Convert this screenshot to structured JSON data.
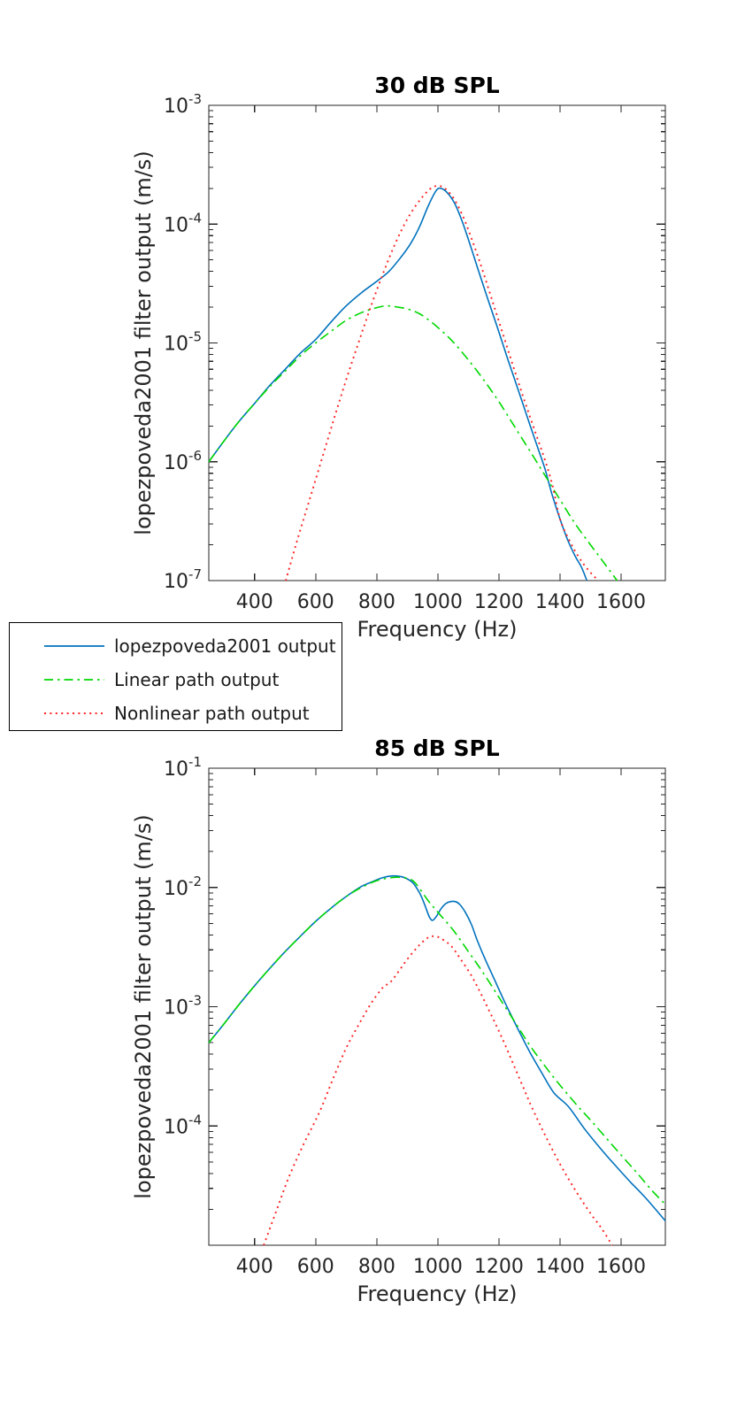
{
  "figure": {
    "background": "#ffffff",
    "axis_color": "#262626",
    "text_color": "#262626",
    "title_color": "#000000",
    "legend": {
      "items": [
        {
          "label": "lopezpoveda2001 output",
          "color": "#0072BD",
          "style": "solid"
        },
        {
          "label": "Linear path output",
          "color": "#00D800",
          "style": "dashdot"
        },
        {
          "label": "Nonlinear path output",
          "color": "#FF2222",
          "style": "dotted"
        }
      ]
    }
  },
  "chart_data": [
    {
      "type": "line",
      "title": "30 dB SPL",
      "xlabel": "Frequency (Hz)",
      "ylabel": "lopezpoveda2001 filter output (m/s)",
      "xlim": [
        250,
        1745
      ],
      "ylim": [
        1e-07,
        0.001
      ],
      "x_ticks": [
        400,
        600,
        800,
        1000,
        1200,
        1400,
        1600
      ],
      "y_tick_exponents": [
        -3,
        -4,
        -5,
        -6,
        -7
      ],
      "grid": false,
      "legend_position": "below-left",
      "series": [
        {
          "name": "lopezpoveda2001 output",
          "color": "#0072BD",
          "style": "solid",
          "points": [
            [
              250,
              1e-06
            ],
            [
              300,
              1.5e-06
            ],
            [
              350,
              2.2e-06
            ],
            [
              400,
              3.1e-06
            ],
            [
              450,
              4.4e-06
            ],
            [
              500,
              6e-06
            ],
            [
              550,
              8.2e-06
            ],
            [
              600,
              1.07e-05
            ],
            [
              650,
              1.5e-05
            ],
            [
              700,
              2.05e-05
            ],
            [
              750,
              2.65e-05
            ],
            [
              800,
              3.3e-05
            ],
            [
              840,
              4e-05
            ],
            [
              880,
              5.3e-05
            ],
            [
              910,
              6.8e-05
            ],
            [
              940,
              9.5e-05
            ],
            [
              970,
              0.000145
            ],
            [
              995,
              0.000192
            ],
            [
              1010,
              0.0002
            ],
            [
              1030,
              0.000185
            ],
            [
              1055,
              0.00015
            ],
            [
              1080,
              0.000105
            ],
            [
              1105,
              6.8e-05
            ],
            [
              1130,
              4.3e-05
            ],
            [
              1160,
              2.5e-05
            ],
            [
              1195,
              1.35e-05
            ],
            [
              1230,
              7.2e-06
            ],
            [
              1265,
              3.9e-06
            ],
            [
              1300,
              2.1e-06
            ],
            [
              1330,
              1.25e-06
            ],
            [
              1352,
              8.5e-07
            ],
            [
              1375,
              5.2e-07
            ],
            [
              1400,
              3.3e-07
            ],
            [
              1425,
              2.2e-07
            ],
            [
              1450,
              1.6e-07
            ],
            [
              1470,
              1.3e-07
            ],
            [
              1488,
              1e-07
            ]
          ]
        },
        {
          "name": "Linear path output",
          "color": "#00D800",
          "style": "dashdot",
          "points": [
            [
              250,
              1e-06
            ],
            [
              300,
              1.5e-06
            ],
            [
              350,
              2.2e-06
            ],
            [
              400,
              3.1e-06
            ],
            [
              450,
              4.3e-06
            ],
            [
              500,
              5.8e-06
            ],
            [
              550,
              7.8e-06
            ],
            [
              600,
              1e-05
            ],
            [
              650,
              1.25e-05
            ],
            [
              700,
              1.55e-05
            ],
            [
              750,
              1.8e-05
            ],
            [
              790,
              1.95e-05
            ],
            [
              830,
              2.05e-05
            ],
            [
              870,
              2e-05
            ],
            [
              910,
              1.9e-05
            ],
            [
              950,
              1.7e-05
            ],
            [
              1000,
              1.35e-05
            ],
            [
              1050,
              1.02e-05
            ],
            [
              1100,
              7.2e-06
            ],
            [
              1150,
              4.9e-06
            ],
            [
              1200,
              3.2e-06
            ],
            [
              1250,
              2e-06
            ],
            [
              1300,
              1.25e-06
            ],
            [
              1352,
              7.6e-07
            ],
            [
              1400,
              4.8e-07
            ],
            [
              1450,
              3e-07
            ],
            [
              1500,
              2e-07
            ],
            [
              1545,
              1.4e-07
            ],
            [
              1587,
              1e-07
            ]
          ]
        },
        {
          "name": "Nonlinear path output",
          "color": "#FF2222",
          "style": "dotted",
          "points": [
            [
              502,
              1e-07
            ],
            [
              540,
              2.2e-07
            ],
            [
              580,
              4.8e-07
            ],
            [
              620,
              1.05e-06
            ],
            [
              660,
              2.3e-06
            ],
            [
              700,
              4.9e-06
            ],
            [
              740,
              1e-05
            ],
            [
              780,
              2e-05
            ],
            [
              820,
              3.8e-05
            ],
            [
              860,
              6.8e-05
            ],
            [
              900,
              0.00011
            ],
            [
              940,
              0.000158
            ],
            [
              975,
              0.000198
            ],
            [
              1000,
              0.00021
            ],
            [
              1025,
              0.000198
            ],
            [
              1055,
              0.00016
            ],
            [
              1085,
              0.000112
            ],
            [
              1115,
              7e-05
            ],
            [
              1145,
              4.2e-05
            ],
            [
              1180,
              2.2e-05
            ],
            [
              1215,
              1.15e-05
            ],
            [
              1250,
              6e-06
            ],
            [
              1285,
              3.2e-06
            ],
            [
              1320,
              1.75e-06
            ],
            [
              1350,
              1.05e-06
            ],
            [
              1375,
              6.4e-07
            ],
            [
              1400,
              3.3e-07
            ],
            [
              1430,
              2.2e-07
            ],
            [
              1460,
              1.6e-07
            ],
            [
              1490,
              1.25e-07
            ],
            [
              1525,
              1e-07
            ]
          ]
        }
      ]
    },
    {
      "type": "line",
      "title": "85 dB SPL",
      "xlabel": "Frequency (Hz)",
      "ylabel": "lopezpoveda2001 filter output (m/s)",
      "xlim": [
        250,
        1745
      ],
      "ylim": [
        1e-05,
        0.1
      ],
      "x_ticks": [
        400,
        600,
        800,
        1000,
        1200,
        1400,
        1600
      ],
      "y_tick_exponents": [
        -1,
        -2,
        -3,
        -4
      ],
      "grid": false,
      "series": [
        {
          "name": "lopezpoveda2001 output",
          "color": "#0072BD",
          "style": "solid",
          "points": [
            [
              250,
              0.0005
            ],
            [
              300,
              0.00072
            ],
            [
              350,
              0.00105
            ],
            [
              400,
              0.0015
            ],
            [
              450,
              0.0021
            ],
            [
              500,
              0.0029
            ],
            [
              550,
              0.0039
            ],
            [
              600,
              0.0052
            ],
            [
              650,
              0.0067
            ],
            [
              700,
              0.0084
            ],
            [
              750,
              0.0102
            ],
            [
              790,
              0.0113
            ],
            [
              820,
              0.0121
            ],
            [
              850,
              0.0125
            ],
            [
              875,
              0.0124
            ],
            [
              900,
              0.0118
            ],
            [
              920,
              0.0108
            ],
            [
              940,
              0.009
            ],
            [
              955,
              0.0074
            ],
            [
              967,
              0.0061
            ],
            [
              975,
              0.0055
            ],
            [
              983,
              0.0053
            ],
            [
              995,
              0.0057
            ],
            [
              1010,
              0.0066
            ],
            [
              1025,
              0.0073
            ],
            [
              1040,
              0.0076
            ],
            [
              1058,
              0.0076
            ],
            [
              1072,
              0.0072
            ],
            [
              1090,
              0.0062
            ],
            [
              1110,
              0.0049
            ],
            [
              1129,
              0.0036
            ],
            [
              1155,
              0.0025
            ],
            [
              1185,
              0.0017
            ],
            [
              1215,
              0.00115
            ],
            [
              1245,
              0.0008
            ],
            [
              1275,
              0.00056
            ],
            [
              1305,
              0.0004
            ],
            [
              1340,
              0.00028
            ],
            [
              1380,
              0.00019
            ],
            [
              1428,
              0.000145
            ],
            [
              1480,
              9.5e-05
            ],
            [
              1530,
              6.6e-05
            ],
            [
              1580,
              4.7e-05
            ],
            [
              1630,
              3.4e-05
            ],
            [
              1680,
              2.5e-05
            ],
            [
              1745,
              1.6e-05
            ]
          ]
        },
        {
          "name": "Linear path output",
          "color": "#00D800",
          "style": "dashdot",
          "points": [
            [
              250,
              0.0005
            ],
            [
              300,
              0.00072
            ],
            [
              350,
              0.00105
            ],
            [
              400,
              0.0015
            ],
            [
              450,
              0.0021
            ],
            [
              500,
              0.0029
            ],
            [
              550,
              0.0039
            ],
            [
              600,
              0.0052
            ],
            [
              650,
              0.0067
            ],
            [
              700,
              0.0084
            ],
            [
              750,
              0.01
            ],
            [
              800,
              0.0114
            ],
            [
              850,
              0.0121
            ],
            [
              880,
              0.0121
            ],
            [
              920,
              0.0113
            ],
            [
              969,
              0.0077
            ],
            [
              1000,
              0.0062
            ],
            [
              1050,
              0.0044
            ],
            [
              1100,
              0.0029
            ],
            [
              1150,
              0.0019
            ],
            [
              1200,
              0.0012
            ],
            [
              1250,
              0.00076
            ],
            [
              1300,
              0.00048
            ],
            [
              1350,
              0.00032
            ],
            [
              1400,
              0.00022
            ],
            [
              1460,
              0.000145
            ],
            [
              1500,
              0.000112
            ],
            [
              1550,
              8e-05
            ],
            [
              1600,
              5.7e-05
            ],
            [
              1650,
              4.1e-05
            ],
            [
              1700,
              2.9e-05
            ],
            [
              1745,
              2.2e-05
            ]
          ]
        },
        {
          "name": "Nonlinear path output",
          "color": "#FF2222",
          "style": "dotted",
          "points": [
            [
              430,
              1e-05
            ],
            [
              470,
              1.9e-05
            ],
            [
              510,
              3.6e-05
            ],
            [
              560,
              7e-05
            ],
            [
              612,
              0.00013
            ],
            [
              660,
              0.00026
            ],
            [
              700,
              0.00045
            ],
            [
              740,
              0.0007
            ],
            [
              780,
              0.00105
            ],
            [
              820,
              0.00145
            ],
            [
              848,
              0.00164
            ],
            [
              900,
              0.0025
            ],
            [
              940,
              0.0033
            ],
            [
              965,
              0.00375
            ],
            [
              980,
              0.0039
            ],
            [
              1000,
              0.00385
            ],
            [
              1020,
              0.0036
            ],
            [
              1045,
              0.0032
            ],
            [
              1075,
              0.0025
            ],
            [
              1109,
              0.00184
            ],
            [
              1140,
              0.0013
            ],
            [
              1175,
              0.00085
            ],
            [
              1210,
              0.00055
            ],
            [
              1245,
              0.00034
            ],
            [
              1280,
              0.00021
            ],
            [
              1307,
              0.000145
            ],
            [
              1350,
              8.5e-05
            ],
            [
              1400,
              4.8e-05
            ],
            [
              1450,
              2.9e-05
            ],
            [
              1500,
              1.85e-05
            ],
            [
              1535,
              1.4e-05
            ],
            [
              1571,
              1e-05
            ]
          ]
        }
      ]
    }
  ]
}
